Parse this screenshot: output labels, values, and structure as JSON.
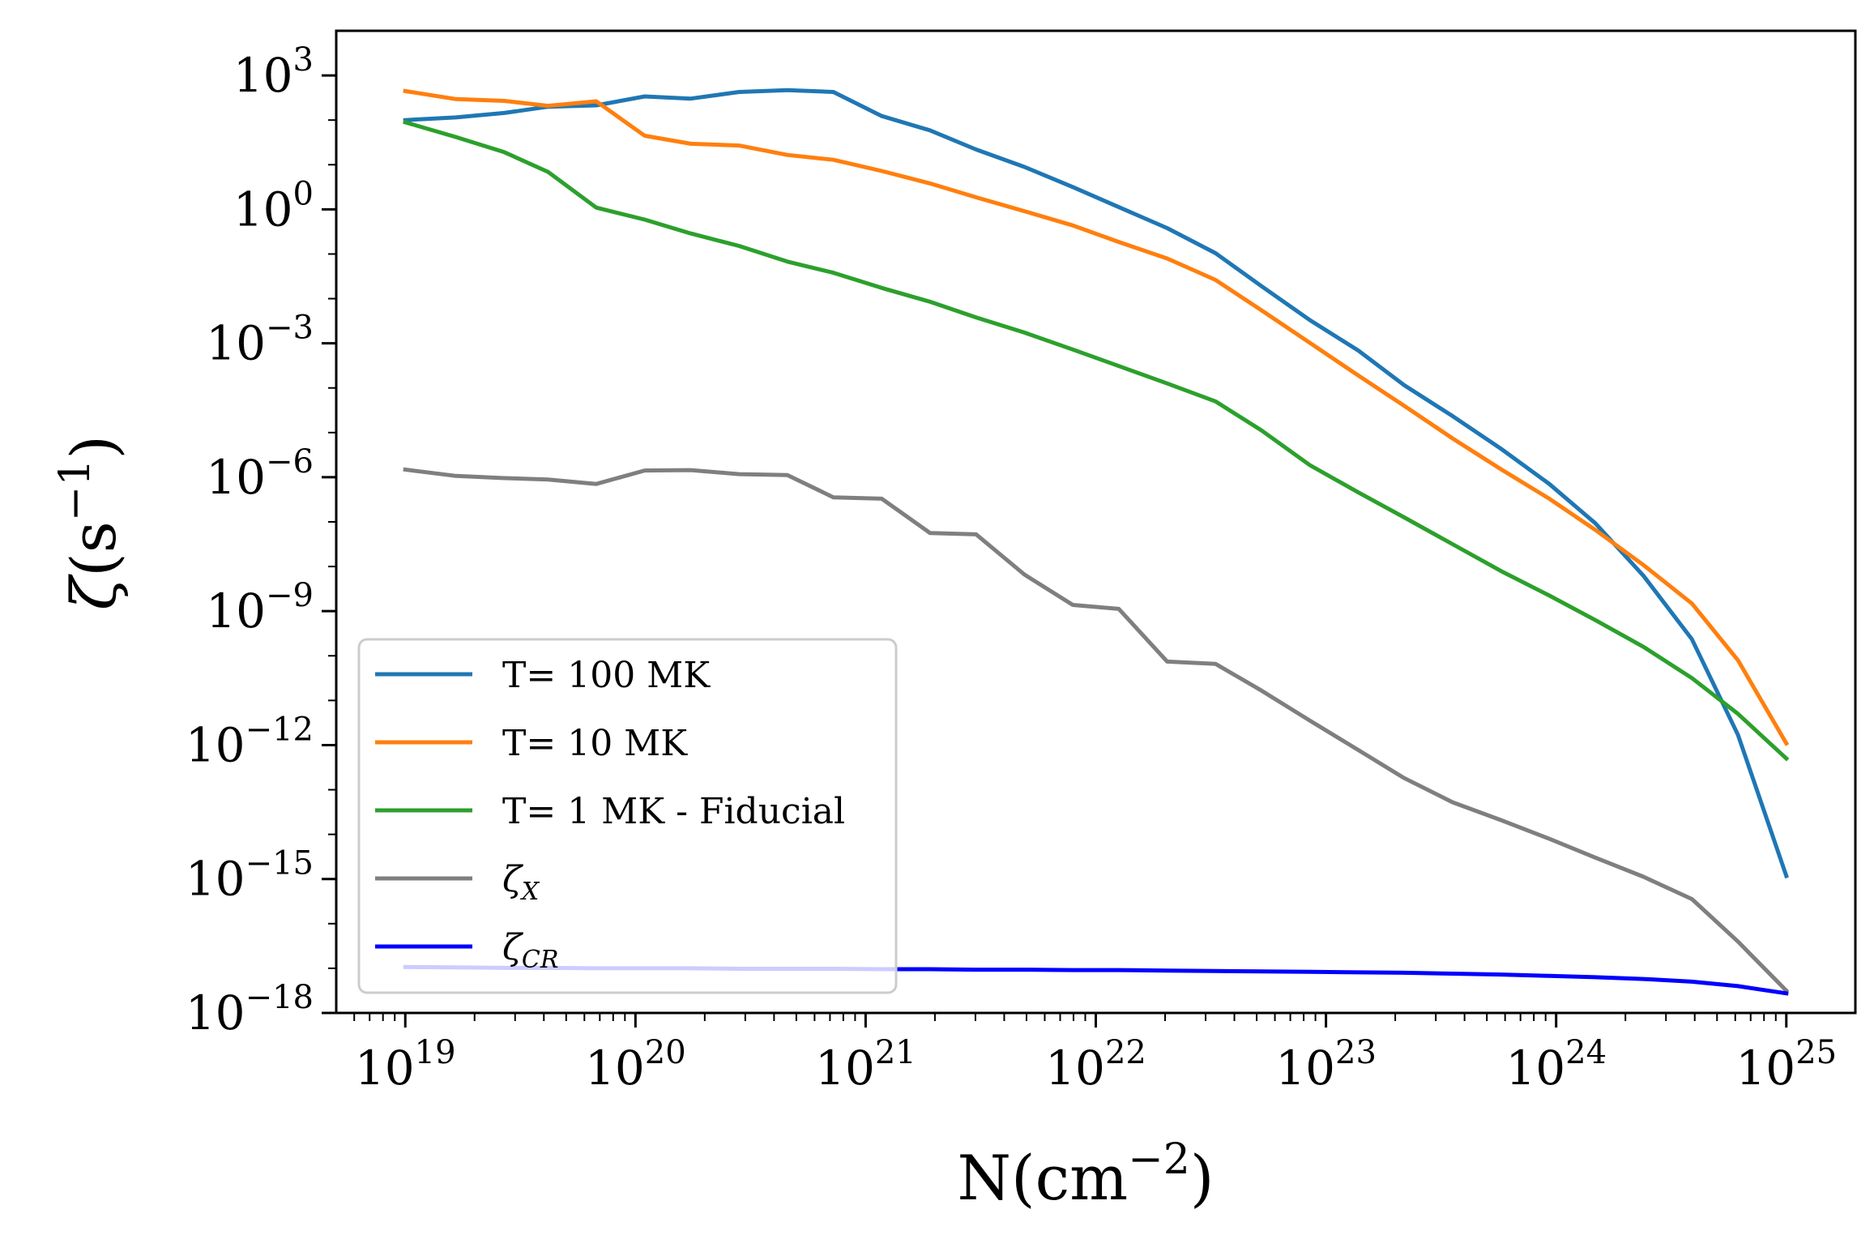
{
  "chart_data": {
    "type": "line",
    "title": "",
    "xlabel": {
      "base": "N(cm",
      "exp": "−2",
      "close": ")"
    },
    "ylabel": {
      "symbol": "ζ",
      "unit": "(s",
      "exp": "−1",
      "close": ")"
    },
    "xscale": "log",
    "yscale": "log",
    "xlim_log10": [
      18.7,
      25.3
    ],
    "ylim_log10": [
      -18,
      4
    ],
    "x_major_ticks": [
      {
        "label_base": "10",
        "label_exp": "19"
      },
      {
        "label_base": "10",
        "label_exp": "20"
      },
      {
        "label_base": "10",
        "label_exp": "21"
      },
      {
        "label_base": "10",
        "label_exp": "22"
      },
      {
        "label_base": "10",
        "label_exp": "23"
      },
      {
        "label_base": "10",
        "label_exp": "24"
      },
      {
        "label_base": "10",
        "label_exp": "25"
      }
    ],
    "x_tick_exponents": [
      19,
      20,
      21,
      22,
      23,
      24,
      25
    ],
    "y_major_ticks": [
      {
        "label_base": "10",
        "label_exp": "3"
      },
      {
        "label_base": "10",
        "label_exp": "0"
      },
      {
        "label_base": "10",
        "label_exp": "−3"
      },
      {
        "label_base": "10",
        "label_exp": "−6"
      },
      {
        "label_base": "10",
        "label_exp": "−9"
      },
      {
        "label_base": "10",
        "label_exp": "−12"
      },
      {
        "label_base": "10",
        "label_exp": "−15"
      },
      {
        "label_base": "10",
        "label_exp": "−18"
      }
    ],
    "y_tick_exponents": [
      3,
      0,
      -3,
      -6,
      -9,
      -12,
      -15,
      -18
    ],
    "x_log10": [
      19.0,
      19.22,
      19.43,
      19.62,
      19.83,
      20.04,
      20.24,
      20.45,
      20.66,
      20.86,
      21.07,
      21.28,
      21.48,
      21.69,
      21.9,
      22.1,
      22.31,
      22.52,
      22.72,
      22.93,
      23.14,
      23.34,
      23.55,
      23.76,
      23.97,
      24.17,
      24.38,
      24.59,
      24.79,
      25.0
    ],
    "legend": {
      "position": "lower-left",
      "entries": [
        {
          "label": "T= 100 MK",
          "series": "T= 100 MK"
        },
        {
          "label": "T= 10 MK",
          "series": "T= 10 MK"
        },
        {
          "label": "T= 1 MK - Fiducial",
          "series": "T= 1 MK - Fiducial"
        },
        {
          "label_main": "ζ",
          "label_sub": "X",
          "series": "zeta_X"
        },
        {
          "label_main": "ζ",
          "label_sub": "CR",
          "series": "zeta_CR"
        }
      ]
    },
    "series": [
      {
        "name": "T= 100 MK",
        "color": "#1f77b4",
        "y_log10": [
          2.0,
          2.06,
          2.16,
          2.3,
          2.33,
          2.53,
          2.48,
          2.63,
          2.67,
          2.63,
          2.09,
          1.77,
          1.34,
          0.95,
          0.5,
          0.05,
          -0.42,
          -0.98,
          -1.72,
          -2.48,
          -3.16,
          -3.94,
          -4.63,
          -5.36,
          -6.15,
          -7.03,
          -8.21,
          -9.63,
          -11.77,
          -14.93
        ]
      },
      {
        "name": "T= 10 MK",
        "color": "#ff7f0e",
        "y_log10": [
          2.65,
          2.47,
          2.43,
          2.32,
          2.42,
          1.65,
          1.47,
          1.43,
          1.22,
          1.11,
          0.86,
          0.58,
          0.27,
          -0.04,
          -0.36,
          -0.73,
          -1.1,
          -1.58,
          -2.26,
          -2.99,
          -3.72,
          -4.4,
          -5.13,
          -5.82,
          -6.48,
          -7.18,
          -7.97,
          -8.83,
          -10.1,
          -11.96
        ]
      },
      {
        "name": "T= 1 MK - Fiducial",
        "color": "#2ca02c",
        "y_log10": [
          1.95,
          1.62,
          1.28,
          0.84,
          0.04,
          -0.23,
          -0.54,
          -0.82,
          -1.17,
          -1.42,
          -1.76,
          -2.07,
          -2.42,
          -2.76,
          -3.14,
          -3.51,
          -3.9,
          -4.3,
          -4.95,
          -5.73,
          -6.34,
          -6.9,
          -7.5,
          -8.1,
          -8.65,
          -9.2,
          -9.8,
          -10.5,
          -11.3,
          -12.3
        ]
      },
      {
        "name": "zeta_X",
        "color": "#7f7f7f",
        "y_log10": [
          -5.83,
          -5.97,
          -6.02,
          -6.05,
          -6.15,
          -5.85,
          -5.84,
          -5.93,
          -5.95,
          -6.45,
          -6.48,
          -7.25,
          -7.28,
          -8.18,
          -8.86,
          -8.95,
          -10.13,
          -10.18,
          -10.78,
          -11.45,
          -12.11,
          -12.74,
          -13.28,
          -13.68,
          -14.1,
          -14.52,
          -14.95,
          -15.45,
          -16.4,
          -17.5
        ]
      },
      {
        "name": "zeta_CR",
        "color": "#0000ff",
        "y_log10": [
          -16.97,
          -16.98,
          -16.99,
          -16.99,
          -17.0,
          -17.0,
          -17.0,
          -17.01,
          -17.01,
          -17.01,
          -17.02,
          -17.02,
          -17.03,
          -17.03,
          -17.04,
          -17.04,
          -17.05,
          -17.06,
          -17.07,
          -17.08,
          -17.09,
          -17.1,
          -17.12,
          -17.14,
          -17.17,
          -17.2,
          -17.24,
          -17.3,
          -17.4,
          -17.56
        ]
      }
    ]
  }
}
